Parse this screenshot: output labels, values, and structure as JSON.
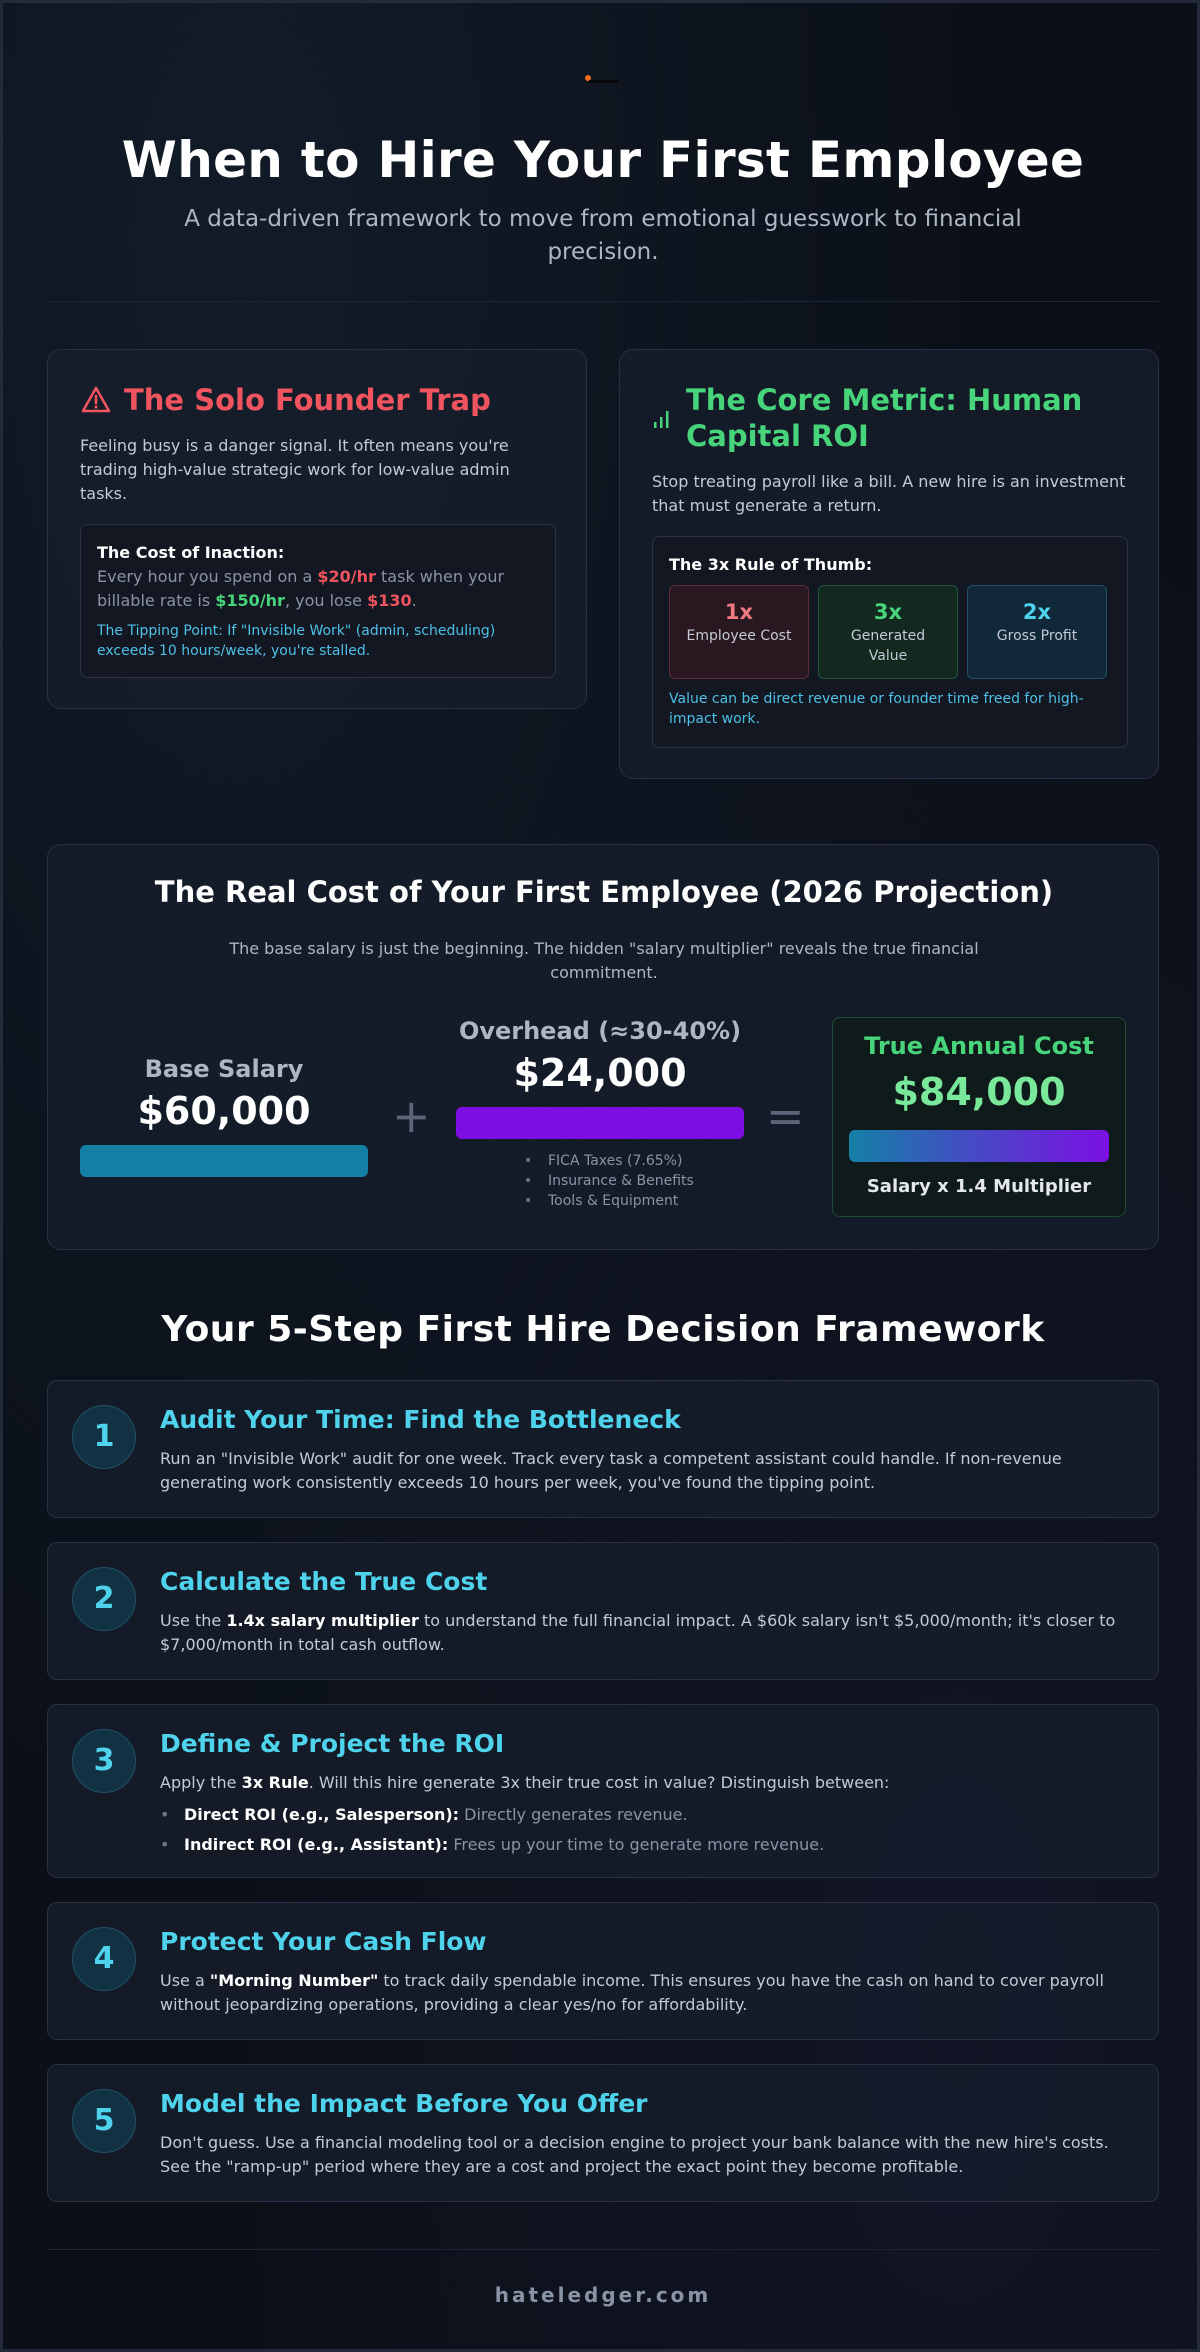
{
  "header": {
    "title": "When to Hire Your First Employee",
    "subtitle": "A data-driven framework to move from emotional guesswork to financial precision."
  },
  "trap": {
    "icon": "warning-icon",
    "title": "The Solo Founder Trap",
    "text": "Feeling busy is a danger signal. It often means you're trading high-value strategic work for low-value admin tasks.",
    "inner_title": "The Cost of Inaction:",
    "line1_pre": "Every hour you spend on a ",
    "line1_low": "$20/hr",
    "line1_mid": " task when your billable rate is ",
    "line1_rate": "$150/hr",
    "line1_post": ", you lose ",
    "line1_loss": "$130",
    "line1_end": ".",
    "tip": "The Tipping Point: If \"Invisible Work\" (admin, scheduling) exceeds 10 hours/week, you're stalled."
  },
  "metric": {
    "icon": "signal-bars-icon",
    "title": "The Core Metric: Human Capital ROI",
    "text": "Stop treating payroll like a bill. A new hire is an investment that must generate a return.",
    "inner_title": "The 3x Rule of Thumb:",
    "multipliers": [
      {
        "value": "1x",
        "label": "Employee Cost"
      },
      {
        "value": "3x",
        "label": "Generated Value"
      },
      {
        "value": "2x",
        "label": "Gross Profit"
      }
    ],
    "note": "Value can be direct revenue or founder time freed for high-impact work."
  },
  "cost": {
    "title": "The Real Cost of Your First Employee (2026 Projection)",
    "subtitle": "The base salary is just the beginning. The hidden \"salary multiplier\" reveals the true financial commitment.",
    "base_label": "Base Salary",
    "base_value": "$60,000",
    "plus": "+",
    "overhead_label": "Overhead (≈30-40%)",
    "overhead_value": "$24,000",
    "overhead_items": [
      "FICA Taxes (7.65%)",
      "Insurance & Benefits",
      "Tools & Equipment"
    ],
    "equals": "=",
    "total_label": "True Annual Cost",
    "total_value": "$84,000",
    "total_note": "Salary x 1.4 Multiplier",
    "colors": {
      "base": "#1480a6",
      "overhead": "#7c10e4",
      "total": "#48d47a"
    }
  },
  "framework": {
    "title": "Your 5-Step First Hire Decision Framework",
    "steps": [
      {
        "num": "1",
        "title": "Audit Your Time: Find the Bottleneck",
        "body": "Run an \"Invisible Work\" audit for one week. Track every task a competent assistant could handle. If non-revenue generating work consistently exceeds 10 hours per week, you've found the tipping point."
      },
      {
        "num": "2",
        "title": "Calculate the True Cost",
        "pre": "Use the ",
        "bold": "1.4x salary multiplier",
        "post": " to understand the full financial impact. A $60k salary isn't $5,000/month; it's closer to $7,000/month in total cash outflow."
      },
      {
        "num": "3",
        "title": "Define & Project the ROI",
        "pre": "Apply the ",
        "bold": "3x Rule",
        "post": ". Will this hire generate 3x their true cost in value? Distinguish between:",
        "bullets": [
          {
            "bold": "Direct ROI (e.g., Salesperson):",
            "text": " Directly generates revenue."
          },
          {
            "bold": "Indirect ROI (e.g., Assistant):",
            "text": " Frees up your time to generate more revenue."
          }
        ]
      },
      {
        "num": "4",
        "title": "Protect Your Cash Flow",
        "pre": "Use a ",
        "bold": "\"Morning Number\"",
        "post": " to track daily spendable income. This ensures you have the cash on hand to cover payroll without jeopardizing operations, providing a clear yes/no for affordability."
      },
      {
        "num": "5",
        "title": "Model the Impact Before You Offer",
        "body": "Don't guess. Use a financial modeling tool or a decision engine to project your bank balance with the new hire's costs. See the \"ramp-up\" period where they are a cost and project the exact point they become profitable."
      }
    ]
  },
  "footer": {
    "brand": "hateledger.com"
  }
}
